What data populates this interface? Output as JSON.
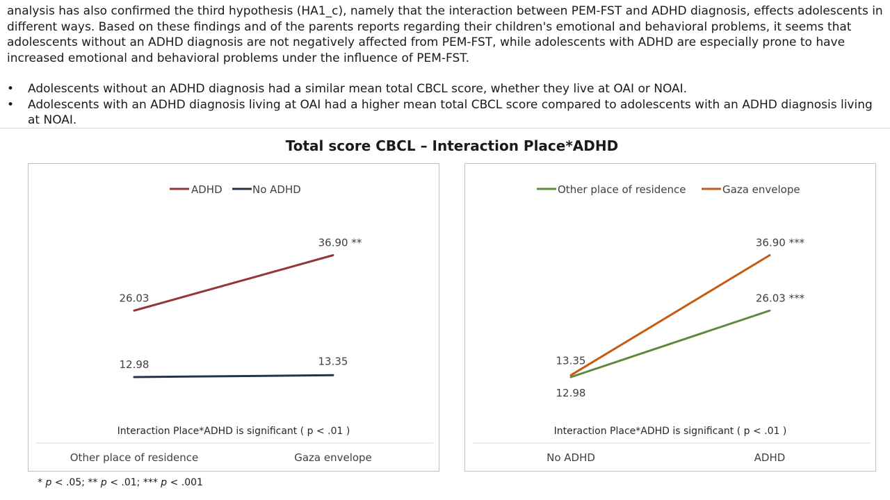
{
  "text": {
    "paragraph": "analysis has also confirmed the third hypothesis (HA1_c), namely that the interaction between PEM-FST and ADHD diagnosis, effects adolescents in different ways. Based on these findings and of the parents reports regarding their children's emotional and behavioral problems, it seems that adolescents without an ADHD diagnosis are not negatively affected from PEM-FST, while adolescents with ADHD are especially prone to have increased emotional and behavioral problems under the influence of PEM-FST.",
    "bullet_marker": "•",
    "bullets": [
      "Adolescents without an ADHD diagnosis had a similar mean total CBCL score, whether they live at OAI or NOAI.",
      "Adolescents with an ADHD diagnosis living at OAI had a higher mean total CBCL score compared to adolescents with an ADHD diagnosis living at NOAI."
    ]
  },
  "chart_title": "Total score CBCL – Interaction Place*ADHD",
  "footnote": {
    "p1": "* ",
    "p1v": " < .05; ** ",
    "p2v": " < .01; *** ",
    "p3v": " < .001",
    "p": "p"
  },
  "chart_data": [
    {
      "type": "line",
      "categories": [
        "Other place of residence",
        "Gaza envelope"
      ],
      "series": [
        {
          "name": "ADHD",
          "values": [
            26.03,
            36.9
          ],
          "labels": [
            "26.03",
            "36.90 **"
          ],
          "color": "#943634"
        },
        {
          "name": "No ADHD",
          "values": [
            12.98,
            13.35
          ],
          "labels": [
            "12.98",
            "13.35"
          ],
          "color": "#243447"
        }
      ],
      "note": "Interaction Place*ADHD is significant",
      "note_stat": "( p < .01 )",
      "legend_position": "top-center",
      "grid": false
    },
    {
      "type": "line",
      "categories": [
        "No ADHD",
        "ADHD"
      ],
      "series": [
        {
          "name": "Other place of residence",
          "values": [
            12.98,
            26.03
          ],
          "labels": [
            "12.98",
            "26.03 ***"
          ],
          "color": "#5b8c3a"
        },
        {
          "name": "Gaza envelope",
          "values": [
            13.35,
            36.9
          ],
          "labels": [
            "13.35",
            "36.90 ***"
          ],
          "color": "#c55a11"
        }
      ],
      "note": "Interaction Place*ADHD is significant",
      "note_stat": "( p < .01 )",
      "legend_position": "top-center",
      "grid": false
    }
  ]
}
